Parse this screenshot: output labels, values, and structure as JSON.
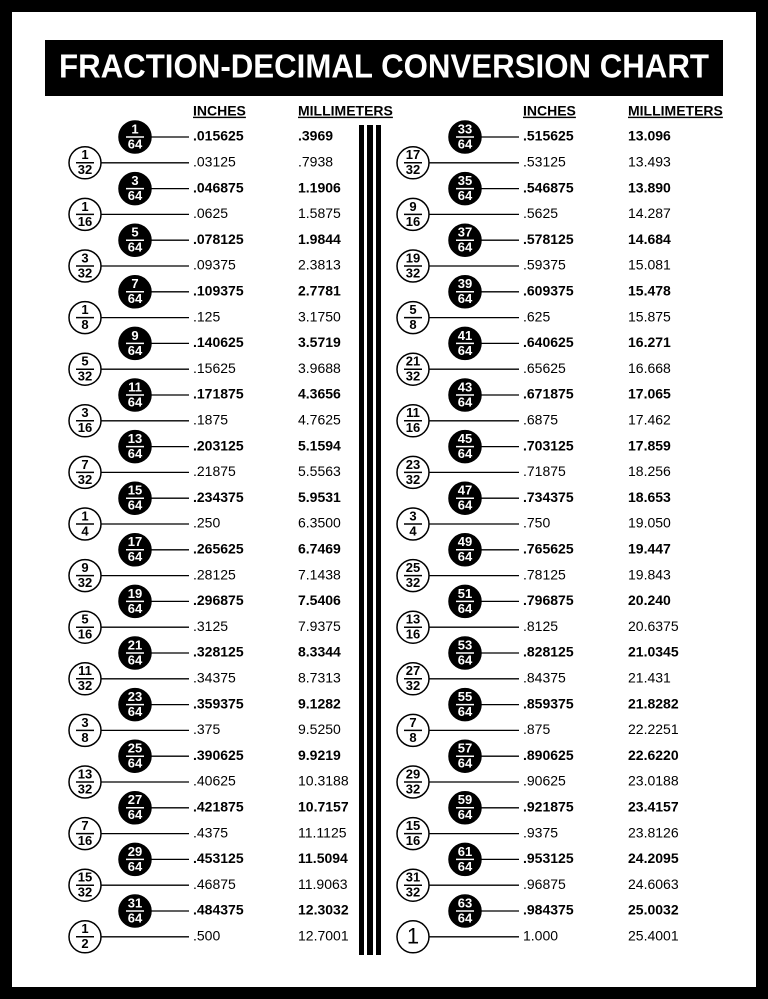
{
  "title": "FRACTION-DECIMAL CONVERSION CHART",
  "columns": [
    {
      "inches_header": "INCHES",
      "mm_header": "MILLIMETERS",
      "rows": [
        {
          "num": "1",
          "den": "64",
          "inches": ".015625",
          "mm": ".3969"
        },
        {
          "num": "1",
          "den": "32",
          "inches": ".03125",
          "mm": ".7938"
        },
        {
          "num": "3",
          "den": "64",
          "inches": ".046875",
          "mm": "1.1906"
        },
        {
          "num": "1",
          "den": "16",
          "inches": ".0625",
          "mm": "1.5875"
        },
        {
          "num": "5",
          "den": "64",
          "inches": ".078125",
          "mm": "1.9844"
        },
        {
          "num": "3",
          "den": "32",
          "inches": ".09375",
          "mm": "2.3813"
        },
        {
          "num": "7",
          "den": "64",
          "inches": ".109375",
          "mm": "2.7781"
        },
        {
          "num": "1",
          "den": "8",
          "inches": ".125",
          "mm": "3.1750"
        },
        {
          "num": "9",
          "den": "64",
          "inches": ".140625",
          "mm": "3.5719"
        },
        {
          "num": "5",
          "den": "32",
          "inches": ".15625",
          "mm": "3.9688"
        },
        {
          "num": "11",
          "den": "64",
          "inches": ".171875",
          "mm": "4.3656"
        },
        {
          "num": "3",
          "den": "16",
          "inches": ".1875",
          "mm": "4.7625"
        },
        {
          "num": "13",
          "den": "64",
          "inches": ".203125",
          "mm": "5.1594"
        },
        {
          "num": "7",
          "den": "32",
          "inches": ".21875",
          "mm": "5.5563"
        },
        {
          "num": "15",
          "den": "64",
          "inches": ".234375",
          "mm": "5.9531"
        },
        {
          "num": "1",
          "den": "4",
          "inches": ".250",
          "mm": "6.3500"
        },
        {
          "num": "17",
          "den": "64",
          "inches": ".265625",
          "mm": "6.7469"
        },
        {
          "num": "9",
          "den": "32",
          "inches": ".28125",
          "mm": "7.1438"
        },
        {
          "num": "19",
          "den": "64",
          "inches": ".296875",
          "mm": "7.5406"
        },
        {
          "num": "5",
          "den": "16",
          "inches": ".3125",
          "mm": "7.9375"
        },
        {
          "num": "21",
          "den": "64",
          "inches": ".328125",
          "mm": "8.3344"
        },
        {
          "num": "11",
          "den": "32",
          "inches": ".34375",
          "mm": "8.7313"
        },
        {
          "num": "23",
          "den": "64",
          "inches": ".359375",
          "mm": "9.1282"
        },
        {
          "num": "3",
          "den": "8",
          "inches": ".375",
          "mm": "9.5250"
        },
        {
          "num": "25",
          "den": "64",
          "inches": ".390625",
          "mm": "9.9219"
        },
        {
          "num": "13",
          "den": "32",
          "inches": ".40625",
          "mm": "10.3188"
        },
        {
          "num": "27",
          "den": "64",
          "inches": ".421875",
          "mm": "10.7157"
        },
        {
          "num": "7",
          "den": "16",
          "inches": ".4375",
          "mm": "11.1125"
        },
        {
          "num": "29",
          "den": "64",
          "inches": ".453125",
          "mm": "11.5094"
        },
        {
          "num": "15",
          "den": "32",
          "inches": ".46875",
          "mm": "11.9063"
        },
        {
          "num": "31",
          "den": "64",
          "inches": ".484375",
          "mm": "12.3032"
        },
        {
          "num": "1",
          "den": "2",
          "inches": ".500",
          "mm": "12.7001"
        }
      ]
    },
    {
      "inches_header": "INCHES",
      "mm_header": "MILLIMETERS",
      "rows": [
        {
          "num": "33",
          "den": "64",
          "inches": ".515625",
          "mm": "13.096"
        },
        {
          "num": "17",
          "den": "32",
          "inches": ".53125",
          "mm": "13.493"
        },
        {
          "num": "35",
          "den": "64",
          "inches": ".546875",
          "mm": "13.890"
        },
        {
          "num": "9",
          "den": "16",
          "inches": ".5625",
          "mm": "14.287"
        },
        {
          "num": "37",
          "den": "64",
          "inches": ".578125",
          "mm": "14.684"
        },
        {
          "num": "19",
          "den": "32",
          "inches": ".59375",
          "mm": "15.081"
        },
        {
          "num": "39",
          "den": "64",
          "inches": ".609375",
          "mm": "15.478"
        },
        {
          "num": "5",
          "den": "8",
          "inches": ".625",
          "mm": "15.875"
        },
        {
          "num": "41",
          "den": "64",
          "inches": ".640625",
          "mm": "16.271"
        },
        {
          "num": "21",
          "den": "32",
          "inches": ".65625",
          "mm": "16.668"
        },
        {
          "num": "43",
          "den": "64",
          "inches": ".671875",
          "mm": "17.065"
        },
        {
          "num": "11",
          "den": "16",
          "inches": ".6875",
          "mm": "17.462"
        },
        {
          "num": "45",
          "den": "64",
          "inches": ".703125",
          "mm": "17.859"
        },
        {
          "num": "23",
          "den": "32",
          "inches": ".71875",
          "mm": "18.256"
        },
        {
          "num": "47",
          "den": "64",
          "inches": ".734375",
          "mm": "18.653"
        },
        {
          "num": "3",
          "den": "4",
          "inches": ".750",
          "mm": "19.050"
        },
        {
          "num": "49",
          "den": "64",
          "inches": ".765625",
          "mm": "19.447"
        },
        {
          "num": "25",
          "den": "32",
          "inches": ".78125",
          "mm": "19.843"
        },
        {
          "num": "51",
          "den": "64",
          "inches": ".796875",
          "mm": "20.240"
        },
        {
          "num": "13",
          "den": "16",
          "inches": ".8125",
          "mm": "20.6375"
        },
        {
          "num": "53",
          "den": "64",
          "inches": ".828125",
          "mm": "21.0345"
        },
        {
          "num": "27",
          "den": "32",
          "inches": ".84375",
          "mm": "21.431"
        },
        {
          "num": "55",
          "den": "64",
          "inches": ".859375",
          "mm": "21.8282"
        },
        {
          "num": "7",
          "den": "8",
          "inches": ".875",
          "mm": "22.2251"
        },
        {
          "num": "57",
          "den": "64",
          "inches": ".890625",
          "mm": "22.6220"
        },
        {
          "num": "29",
          "den": "32",
          "inches": ".90625",
          "mm": "23.0188"
        },
        {
          "num": "59",
          "den": "64",
          "inches": ".921875",
          "mm": "23.4157"
        },
        {
          "num": "15",
          "den": "16",
          "inches": ".9375",
          "mm": "23.8126"
        },
        {
          "num": "61",
          "den": "64",
          "inches": ".953125",
          "mm": "24.2095"
        },
        {
          "num": "31",
          "den": "32",
          "inches": ".96875",
          "mm": "24.6063"
        },
        {
          "num": "63",
          "den": "64",
          "inches": ".984375",
          "mm": "25.0032"
        },
        {
          "num": "1",
          "inches": "1.000",
          "mm": "25.4001"
        }
      ]
    }
  ]
}
